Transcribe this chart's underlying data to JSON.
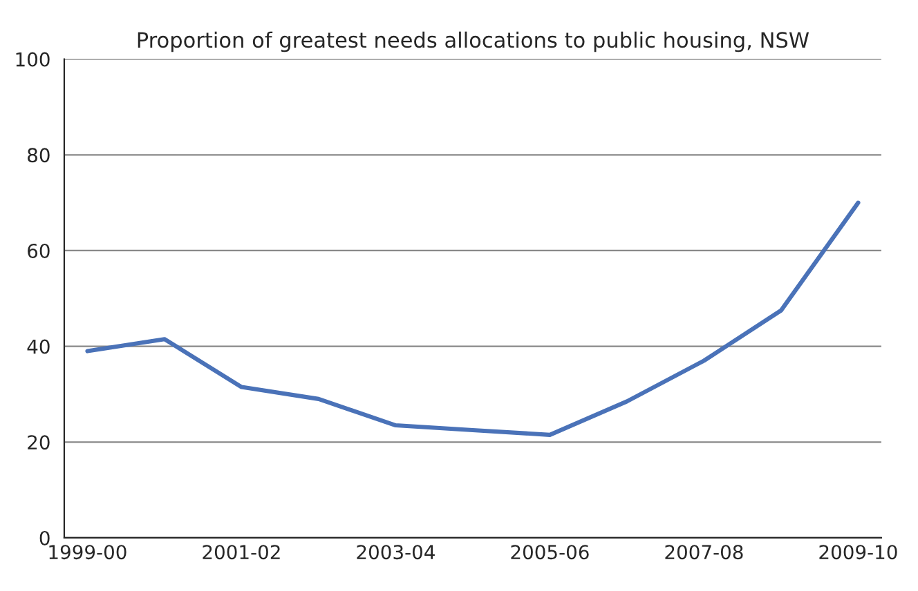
{
  "chart_data": {
    "type": "line",
    "title": "Proportion of greatest needs allocations to public housing, NSW",
    "categories": [
      "1999-00",
      null,
      "2001-02",
      null,
      "2003-04",
      null,
      "2005-06",
      null,
      "2007-08",
      null,
      "2009-10"
    ],
    "series": [
      {
        "color": "#4a72b8",
        "values": [
          39,
          41.5,
          31.5,
          29,
          23.5,
          22.5,
          21.5,
          28.5,
          37,
          47.5,
          70
        ]
      }
    ],
    "ylim": [
      0,
      100
    ],
    "yticks": [
      0,
      20,
      40,
      60,
      80,
      100
    ],
    "grid": "y",
    "legend": false,
    "marker": "none",
    "line_style": "solid"
  }
}
